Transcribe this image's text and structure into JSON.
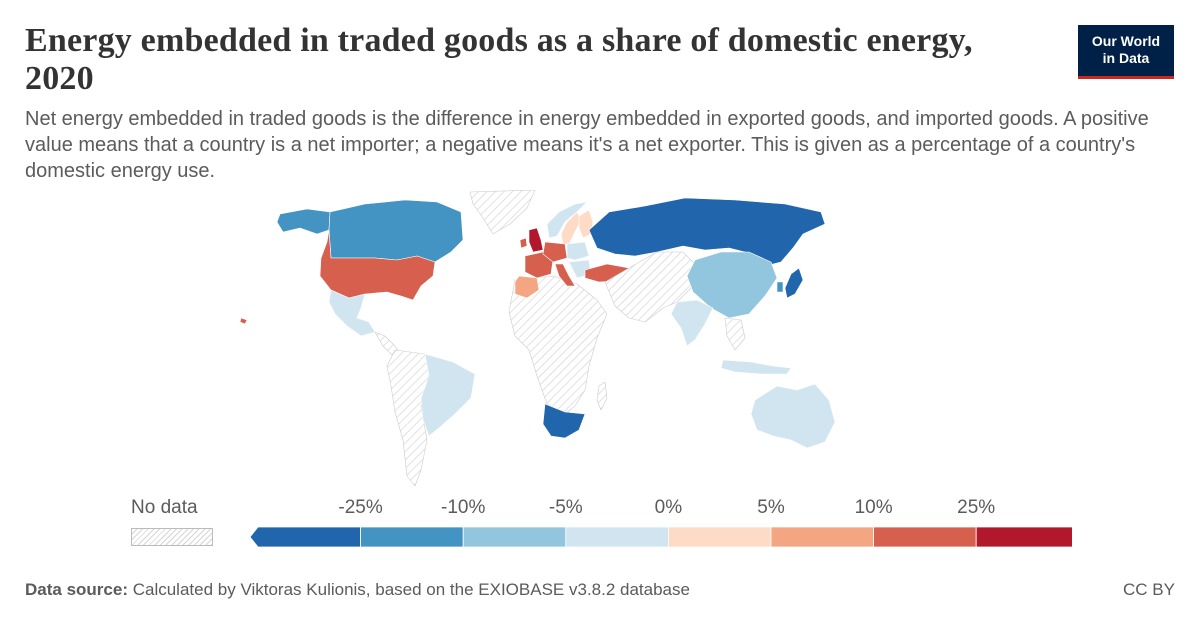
{
  "header": {
    "title": "Energy embedded in traded goods as a share of domestic energy, 2020",
    "subtitle": "Net energy embedded in traded goods is the difference in energy embedded in exported goods, and imported goods. A positive value means that a country is a net importer; a negative means it's a net exporter. This is given as a percentage of a country's domestic energy use."
  },
  "logo": {
    "line1": "Our World",
    "line2": "in Data"
  },
  "legend": {
    "no_data_label": "No data",
    "thresholds": [
      "-25%",
      "-10%",
      "-5%",
      "0%",
      "5%",
      "10%",
      "25%"
    ],
    "bins": [
      {
        "color": "#2166ac"
      },
      {
        "color": "#4393c3"
      },
      {
        "color": "#92c5de"
      },
      {
        "color": "#d1e5f0"
      },
      {
        "color": "#fddbc7"
      },
      {
        "color": "#f4a582"
      },
      {
        "color": "#d6604d"
      },
      {
        "color": "#b2182b"
      }
    ]
  },
  "map_data": {
    "year": 2020,
    "countries": [
      {
        "name": "Canada",
        "bin": "-25% to -10%",
        "color": "#4393c3"
      },
      {
        "name": "Alaska (United States)",
        "bin": "-25% to -10%",
        "color": "#4393c3"
      },
      {
        "name": "United States",
        "bin": "10% to 25%",
        "color": "#d6604d"
      },
      {
        "name": "Mexico",
        "bin": "-5% to 0%",
        "color": "#d1e5f0"
      },
      {
        "name": "Brazil",
        "bin": "-5% to 0%",
        "color": "#d1e5f0"
      },
      {
        "name": "Russia",
        "bin": "below -25%",
        "color": "#2166ac"
      },
      {
        "name": "Norway",
        "bin": "-5% to 0%",
        "color": "#d1e5f0"
      },
      {
        "name": "Sweden",
        "bin": "0% to 5%",
        "color": "#fddbc7"
      },
      {
        "name": "Finland",
        "bin": "0% to 5%",
        "color": "#fddbc7"
      },
      {
        "name": "United Kingdom",
        "bin": "above 25%",
        "color": "#b2182b"
      },
      {
        "name": "Ireland",
        "bin": "10% to 25%",
        "color": "#d6604d"
      },
      {
        "name": "France",
        "bin": "10% to 25%",
        "color": "#d6604d"
      },
      {
        "name": "Spain",
        "bin": "5% to 10%",
        "color": "#f4a582"
      },
      {
        "name": "Germany",
        "bin": "10% to 25%",
        "color": "#d6604d"
      },
      {
        "name": "Italy",
        "bin": "10% to 25%",
        "color": "#d6604d"
      },
      {
        "name": "Poland",
        "bin": "-5% to 0%",
        "color": "#d1e5f0"
      },
      {
        "name": "Turkey",
        "bin": "10% to 25%",
        "color": "#d6604d"
      },
      {
        "name": "China",
        "bin": "-10% to -5%",
        "color": "#92c5de"
      },
      {
        "name": "India",
        "bin": "-5% to 0%",
        "color": "#d1e5f0"
      },
      {
        "name": "Indonesia",
        "bin": "-5% to 0%",
        "color": "#d1e5f0"
      },
      {
        "name": "Japan",
        "bin": "below -25%",
        "color": "#2166ac"
      },
      {
        "name": "South Korea",
        "bin": "-25% to -10%",
        "color": "#4393c3"
      },
      {
        "name": "Australia",
        "bin": "-5% to 0%",
        "color": "#d1e5f0"
      },
      {
        "name": "South Africa",
        "bin": "below -25%",
        "color": "#2166ac"
      }
    ]
  },
  "footer": {
    "source_label": "Data source:",
    "source_text": "Calculated by Viktoras Kulionis, based on the EXIOBASE v3.8.2 database",
    "license": "CC BY"
  }
}
